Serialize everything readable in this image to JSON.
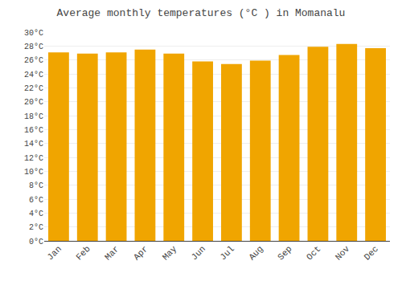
{
  "chart_data": {
    "type": "bar",
    "title": "Average monthly temperatures (°C ) in Momanalu",
    "categories": [
      "Jan",
      "Feb",
      "Mar",
      "Apr",
      "May",
      "Jun",
      "Jul",
      "Aug",
      "Sep",
      "Oct",
      "Nov",
      "Dec"
    ],
    "values": [
      27.1,
      26.9,
      27.1,
      27.5,
      26.9,
      25.8,
      25.4,
      25.9,
      26.7,
      27.9,
      28.3,
      27.7
    ],
    "color": "#F0A500",
    "ylim": [
      0,
      30
    ],
    "yticks": [
      {
        "value": 0,
        "label": "0°C"
      },
      {
        "value": 2,
        "label": "2°C"
      },
      {
        "value": 4,
        "label": "4°C"
      },
      {
        "value": 6,
        "label": "6°C"
      },
      {
        "value": 8,
        "label": "8°C"
      },
      {
        "value": 10,
        "label": "10°C"
      },
      {
        "value": 12,
        "label": "12°C"
      },
      {
        "value": 14,
        "label": "14°C"
      },
      {
        "value": 16,
        "label": "16°C"
      },
      {
        "value": 18,
        "label": "18°C"
      },
      {
        "value": 20,
        "label": "20°C"
      },
      {
        "value": 22,
        "label": "22°C"
      },
      {
        "value": 24,
        "label": "24°C"
      },
      {
        "value": 26,
        "label": "26°C"
      },
      {
        "value": 28,
        "label": "28°C"
      },
      {
        "value": 30,
        "label": "30°C"
      }
    ],
    "grid": true
  }
}
